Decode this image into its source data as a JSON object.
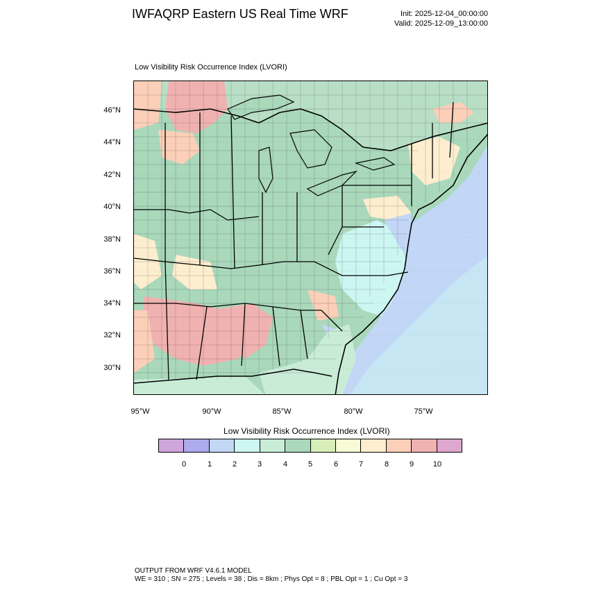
{
  "header": {
    "title": "IWFAQRP Eastern US Real Time WRF",
    "init": "Init: 2025-12-04_00:00:00",
    "valid": "Valid: 2025-12-09_13:00:00"
  },
  "plot": {
    "title": "Low Visibility Risk Occurrence Index   (LVORI)",
    "lat_labels": [
      "46°N",
      "44°N",
      "42°N",
      "40°N",
      "38°N",
      "36°N",
      "34°N",
      "32°N",
      "30°N"
    ],
    "lon_labels": [
      "95°W",
      "90°W",
      "85°W",
      "80°W",
      "75°W"
    ]
  },
  "colorbar": {
    "title": "Low Visibility Risk Occurrence Index  (LVORI)",
    "colors": [
      "#cfa6dc",
      "#adabee",
      "#c2d6f6",
      "#ccf6f1",
      "#c9ecd7",
      "#a9d8bb",
      "#d7eebb",
      "#f7fbd6",
      "#fdeecf",
      "#fbcfb8",
      "#f0b2b0",
      "#dea7cf"
    ],
    "labels": [
      "0",
      "1",
      "2",
      "3",
      "4",
      "5",
      "6",
      "7",
      "8",
      "9",
      "10"
    ]
  },
  "footer": {
    "line1": "OUTPUT FROM WRF V4.6.1 MODEL",
    "line2": "WE = 310 ; SN = 275 ; Levels = 38 ; Dis = 8km ; Phys Opt = 8 ; PBL Opt = 1 ; Cu Opt = 3"
  }
}
